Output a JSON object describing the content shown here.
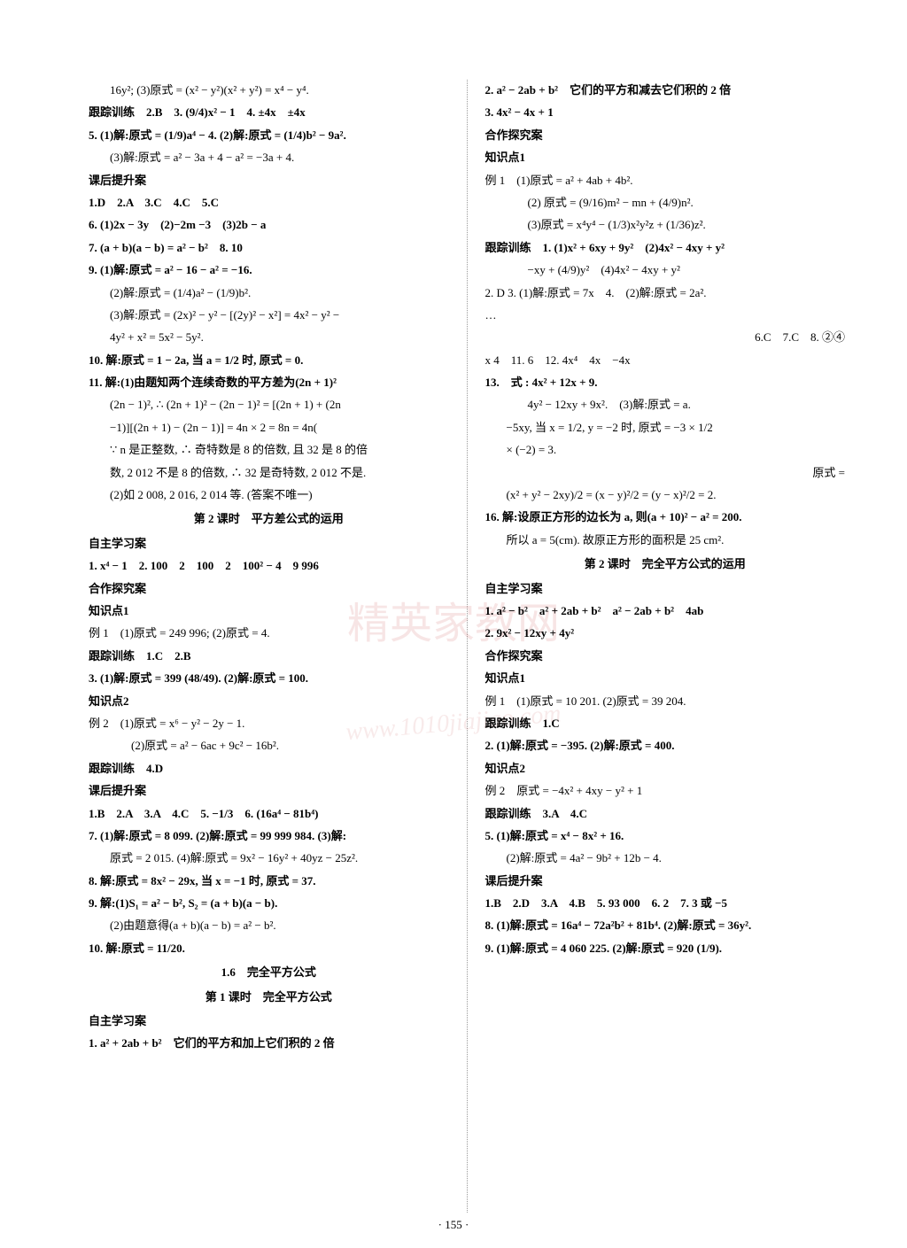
{
  "page_number": "· 155 ·",
  "watermark_main": "精英家教网",
  "watermark_url": "www.1010jiajiao.com",
  "left_column": {
    "l1": "16y²; (3)原式 = (x² − y²)(x² + y²) = x⁴ − y⁴.",
    "l2": "跟踪训练　2.B　3. (9/4)x² − 1　4. ±4x　±4x",
    "l3": "5. (1)解:原式 = (1/9)a⁴ − 4. (2)解:原式 = (1/4)b² − 9a².",
    "l4": "(3)解:原式 = a² − 3a + 4 − a² = −3a + 4.",
    "l5": "课后提升案",
    "l6": "1.D　2.A　3.C　4.C　5.C",
    "l7": "6. (1)2x − 3y　(2)−2m −3　(3)2b − a",
    "l8": "7. (a + b)(a − b) = a² − b²　8. 10",
    "l9": "9. (1)解:原式 = a² − 16 − a² = −16.",
    "l10": "(2)解:原式 = (1/4)a² − (1/9)b².",
    "l11": "(3)解:原式 = (2x)² − y² − [(2y)² − x²] = 4x² − y² −",
    "l12": "4y² + x² = 5x² − 5y².",
    "l13": "10. 解:原式 = 1 − 2a, 当 a = 1/2 时, 原式 = 0.",
    "l14": "11. 解:(1)由题知两个连续奇数的平方差为(2n + 1)²",
    "l15": "(2n − 1)², ∴ (2n + 1)² − (2n − 1)² = [(2n + 1) + (2n",
    "l16": "−1)][(2n + 1) − (2n − 1)] = 4n × 2 = 8n = 4n(",
    "l17": "∵ n 是正整数, ∴ 奇特数是 8 的倍数, 且 32 是 8 的倍",
    "l18": "数, 2 012 不是 8 的倍数, ∴ 32 是奇特数, 2 012 不是.",
    "l19": "(2)如 2 008, 2 016, 2 014 等. (答案不唯一)",
    "l20": "第 2 课时　平方差公式的运用",
    "l21": "自主学习案",
    "l22": "1. x⁴ − 1　2. 100　2　100　2　100² − 4　9 996",
    "l23": "合作探究案",
    "l24": "知识点1",
    "l25": "例 1　(1)原式 = 249 996; (2)原式 = 4.",
    "l26": "跟踪训练　1.C　2.B",
    "l27": "3. (1)解:原式 = 399 (48/49). (2)解:原式 = 100.",
    "l28": "知识点2",
    "l29": "例 2　(1)原式 = x⁶ − y² − 2y − 1.",
    "l30": "(2)原式 = a² − 6ac + 9c² − 16b².",
    "l31": "跟踪训练　4.D",
    "l32": "课后提升案",
    "l33": "1.B　2.A　3.A　4.C　5. −1/3　6. (16a⁴ − 81b⁴)",
    "l34": "7. (1)解:原式 = 8 099. (2)解:原式 = 99 999 984. (3)解:",
    "l35": "原式 = 2 015. (4)解:原式 = 9x² − 16y² + 40yz − 25z².",
    "l36": "8. 解:原式 = 8x² − 29x, 当 x = −1 时, 原式 = 37.",
    "l37": "9. 解:(1)S₁ = a² − b², S₂ = (a + b)(a − b).",
    "l38": "(2)由题意得(a + b)(a − b) = a² − b².",
    "l39": "10. 解:原式 = 11/20.",
    "l40": "1.6　完全平方公式",
    "l41": "第 1 课时　完全平方公式",
    "l42": "自主学习案",
    "l43": "1. a² + 2ab + b²　它们的平方和加上它们积的 2 倍"
  },
  "right_column": {
    "r1": "2. a² − 2ab + b²　它们的平方和减去它们积的 2 倍",
    "r2": "3. 4x² − 4x + 1",
    "r3": "合作探究案",
    "r4": "知识点1",
    "r5": "例 1　(1)原式 = a² + 4ab + 4b².",
    "r6": "(2) 原式 = (9/16)m² − mn + (4/9)n².",
    "r7": "(3)原式 = x⁴y⁴ − (1/3)x²y²z + (1/36)z².",
    "r8": "跟踪训练　1. (1)x² + 6xy + 9y²　(2)4x² − 4xy + y²",
    "r9": "−xy + (4/9)y²　(4)4x² − 4xy + y²",
    "r10": "2. D  3. (1)解:原式 = 7x　4.　(2)解:原式 = 2a².",
    "r11_blur": "…",
    "r12": "6.C　7.C　8. ②④",
    "r13": "x 4　11. 6　12. 4x⁴　4x　−4x",
    "r14": "13.　式 : 4x² + 12x + 9.",
    "r15": "4y² − 12xy + 9x².　(3)解:原式 = a.",
    "r16": "−5xy, 当 x = 1/2, y = −2 时, 原式 = −3 × 1/2",
    "r17": "× (−2) = 3.",
    "r18": "原式 =",
    "r19": "(x² + y² − 2xy)/2 = (x − y)²/2 = (y − x)²/2 = 2.",
    "r20": "16. 解:设原正方形的边长为 a, 则(a + 10)² − a² = 200.",
    "r21": "所以 a = 5(cm). 故原正方形的面积是 25 cm².",
    "r22": "第 2 课时　完全平方公式的运用",
    "r23": "自主学习案",
    "r24": "1. a² − b²　a² + 2ab + b²　a² − 2ab + b²　4ab",
    "r25": "2. 9x² − 12xy + 4y²",
    "r26": "合作探究案",
    "r27": "知识点1",
    "r28": "例 1　(1)原式 = 10 201. (2)原式 = 39 204.",
    "r29": "跟踪训练　1.C",
    "r30": "2. (1)解:原式 = −395. (2)解:原式 = 400.",
    "r31": "知识点2",
    "r32": "例 2　原式 = −4x² + 4xy − y² + 1",
    "r33": "跟踪训练　3.A　4.C",
    "r34": "5. (1)解:原式 = x⁴ − 8x² + 16.",
    "r35": "(2)解:原式 = 4a² − 9b² + 12b − 4.",
    "r36": "课后提升案",
    "r37": "1.B　2.D　3.A　4.B　5. 93 000　6. 2　7. 3 或 −5",
    "r38": "8. (1)解:原式 = 16a⁴ − 72a²b² + 81b⁴. (2)解:原式 = 36y².",
    "r39": "9. (1)解:原式 = 4 060 225. (2)解:原式 = 920 (1/9)."
  }
}
